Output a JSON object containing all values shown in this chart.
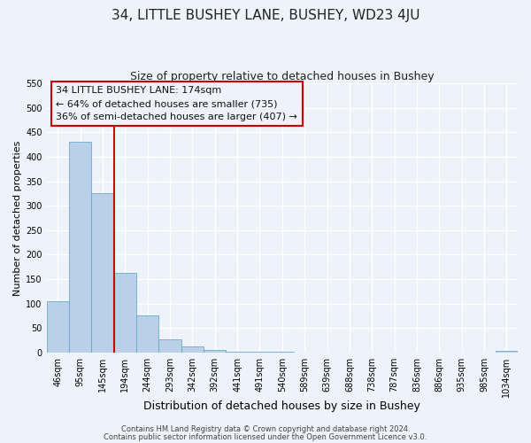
{
  "title": "34, LITTLE BUSHEY LANE, BUSHEY, WD23 4JU",
  "subtitle": "Size of property relative to detached houses in Bushey",
  "xlabel": "Distribution of detached houses by size in Bushey",
  "ylabel": "Number of detached properties",
  "bar_values": [
    105,
    430,
    325,
    163,
    75,
    27,
    13,
    5,
    1,
    1,
    1,
    0,
    0,
    0,
    0,
    0,
    0,
    0,
    0,
    0,
    3
  ],
  "bin_labels": [
    "46sqm",
    "95sqm",
    "145sqm",
    "194sqm",
    "244sqm",
    "293sqm",
    "342sqm",
    "392sqm",
    "441sqm",
    "491sqm",
    "540sqm",
    "589sqm",
    "639sqm",
    "688sqm",
    "738sqm",
    "787sqm",
    "836sqm",
    "886sqm",
    "935sqm",
    "985sqm",
    "1034sqm"
  ],
  "bar_color": "#b8d0e8",
  "bar_edge_color": "#5a9fc0",
  "vline_x": 2.5,
  "vline_color": "#cc0000",
  "annotation_text_line1": "34 LITTLE BUSHEY LANE: 174sqm",
  "annotation_text_line2": "← 64% of detached houses are smaller (735)",
  "annotation_text_line3": "36% of semi-detached houses are larger (407) →",
  "annotation_box_color": "#cc0000",
  "ylim": [
    0,
    550
  ],
  "yticks": [
    0,
    50,
    100,
    150,
    200,
    250,
    300,
    350,
    400,
    450,
    500,
    550
  ],
  "footnote1": "Contains HM Land Registry data © Crown copyright and database right 2024.",
  "footnote2": "Contains public sector information licensed under the Open Government Licence v3.0.",
  "background_color": "#eef2fb",
  "grid_color": "#ffffff",
  "title_fontsize": 11,
  "subtitle_fontsize": 9,
  "annotation_fontsize": 8,
  "tick_fontsize": 7,
  "ylabel_fontsize": 8,
  "xlabel_fontsize": 9,
  "footnote_fontsize": 6
}
